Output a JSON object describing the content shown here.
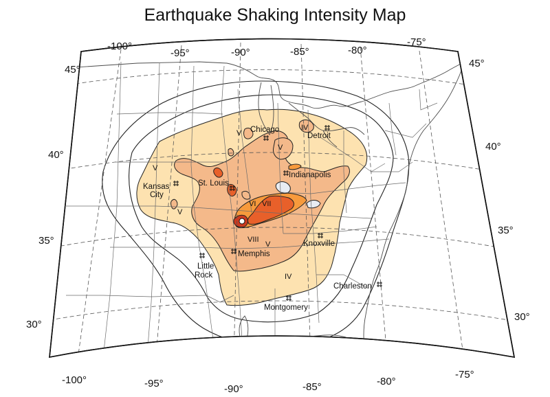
{
  "title": "Earthquake Shaking Intensity Map",
  "longitude_labels_top": [
    "-100°",
    "-95°",
    "-90°",
    "-85°",
    "-80°",
    "-75°"
  ],
  "longitude_labels_bottom": [
    "-100°",
    "-95°",
    "-90°",
    "-85°",
    "-80°",
    "-75°"
  ],
  "latitude_labels_left": [
    "45°",
    "40°",
    "35°",
    "30°"
  ],
  "latitude_labels_right": [
    "45°",
    "40°",
    "35°",
    "30°"
  ],
  "cities": {
    "chicago": "Chicago",
    "detroit": "Detroit",
    "st_louis": "St. Louis",
    "indianapolis": "Indianapolis",
    "kansas_city_1": "Kansas",
    "kansas_city_2": "City",
    "knoxville": "Knoxville",
    "memphis": "Memphis",
    "little_rock_1": "Little",
    "little_rock_2": "Rock",
    "charleston": "Charleston",
    "montgomery": "Montgomery"
  },
  "intensity_labels": {
    "v_chicago": "V",
    "iv_detroit": "IV",
    "v_indiana": "V",
    "v_kansas_west": "V",
    "v_kansas_south": "V",
    "vi": "VI",
    "vii": "VII",
    "viii": "VIII",
    "v_memphis": "V",
    "iv_south": "IV"
  },
  "zone_colors": {
    "IV": "#fde2b0",
    "V": "#f4b98a",
    "VI": "#f79a3c",
    "VII": "#e8602a",
    "VIII": "#c93a20",
    "outline": "#222222"
  }
}
